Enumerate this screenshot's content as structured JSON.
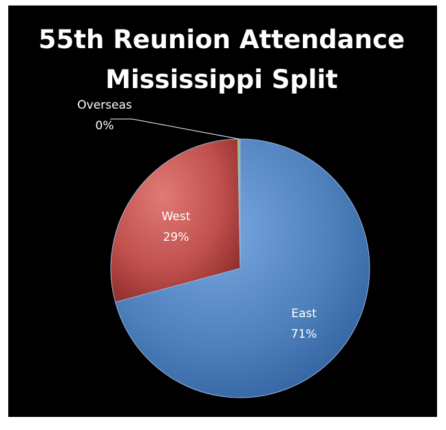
{
  "chart_data": {
    "type": "pie",
    "title": [
      "55th Reunion Attendance",
      "Mississippi Split"
    ],
    "slices": [
      {
        "label": "East",
        "value": 71,
        "display": "71%",
        "color": "#4f81bd"
      },
      {
        "label": "West",
        "value": 29,
        "display": "29%",
        "color": "#c0504d"
      },
      {
        "label": "Overseas",
        "value": 0.3,
        "display": "0%",
        "color": "#9bbb59"
      }
    ],
    "legend": "none",
    "background": "#000000"
  }
}
